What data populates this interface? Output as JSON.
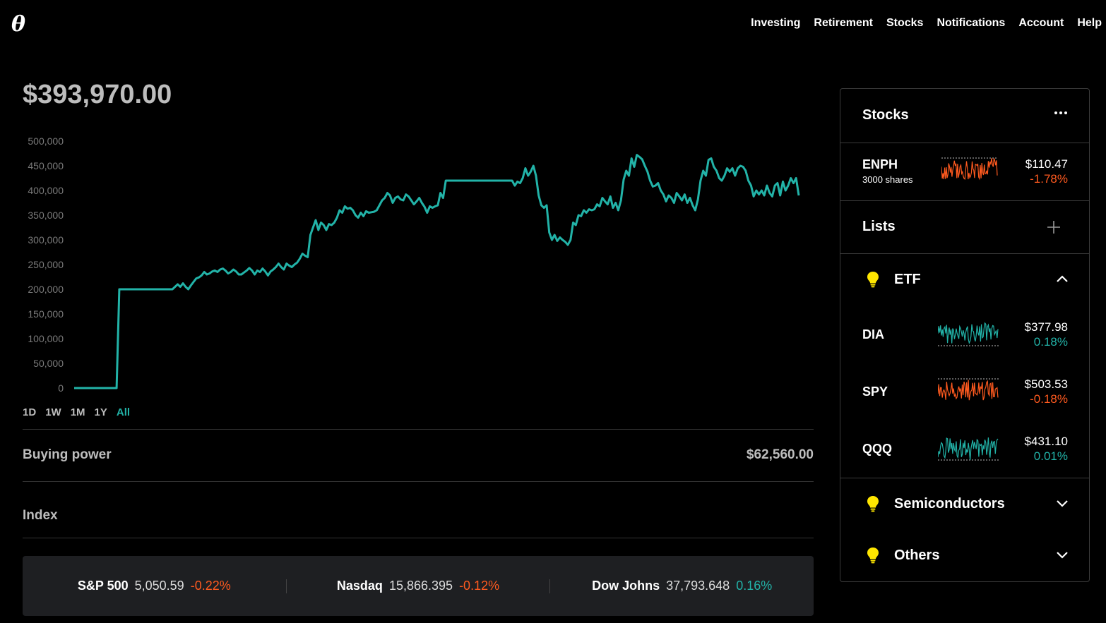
{
  "app": {
    "logo": "θ"
  },
  "nav": {
    "items": [
      "Investing",
      "Retirement",
      "Stocks",
      "Notifications",
      "Account",
      "Help"
    ]
  },
  "portfolio": {
    "value": "$393,970.00"
  },
  "chart_data": {
    "type": "line",
    "title": "",
    "xlabel": "",
    "ylabel": "",
    "ylim": [
      0,
      500000
    ],
    "yticks": [
      0,
      50000,
      100000,
      150000,
      200000,
      250000,
      300000,
      350000,
      400000,
      450000,
      500000
    ],
    "ytick_labels": [
      "0",
      "50,000",
      "100,000",
      "150,000",
      "200,000",
      "250,000",
      "300,000",
      "350,000",
      "400,000",
      "450,000",
      "500,000"
    ],
    "color": "#22b3a8",
    "grid": false,
    "series": [
      {
        "values": [
          0,
          0,
          0,
          0,
          0,
          0,
          0,
          0,
          0,
          0,
          0,
          0,
          0,
          0,
          0,
          0,
          0,
          200000,
          200000,
          200000,
          200000,
          200000,
          200000,
          200000,
          200000,
          200000,
          200000,
          200000,
          200000,
          200000,
          200000,
          200000,
          200000,
          200000,
          200000,
          200000,
          200000,
          200000,
          205000,
          210000,
          205000,
          212000,
          205000,
          200000,
          208000,
          215000,
          222000,
          224000,
          228000,
          235000,
          230000,
          232000,
          236000,
          238000,
          235000,
          240000,
          242000,
          238000,
          232000,
          235000,
          240000,
          236000,
          230000,
          230000,
          234000,
          238000,
          243000,
          238000,
          230000,
          238000,
          235000,
          242000,
          236000,
          228000,
          236000,
          240000,
          245000,
          252000,
          245000,
          240000,
          252000,
          248000,
          245000,
          250000,
          254000,
          262000,
          272000,
          268000,
          265000,
          310000,
          325000,
          340000,
          320000,
          335000,
          330000,
          320000,
          332000,
          330000,
          335000,
          345000,
          360000,
          355000,
          368000,
          363000,
          365000,
          360000,
          350000,
          345000,
          355000,
          348000,
          358000,
          355000,
          356000,
          357000,
          360000,
          370000,
          380000,
          385000,
          395000,
          390000,
          375000,
          385000,
          388000,
          382000,
          380000,
          392000,
          388000,
          380000,
          372000,
          378000,
          385000,
          375000,
          367000,
          355000,
          368000,
          365000,
          368000,
          370000,
          395000,
          385000,
          420000,
          420000,
          420000,
          420000,
          420000,
          420000,
          420000,
          420000,
          420000,
          420000,
          420000,
          420000,
          420000,
          420000,
          420000,
          420000,
          420000,
          420000,
          420000,
          420000,
          420000,
          420000,
          420000,
          420000,
          420000,
          420000,
          410000,
          418000,
          415000,
          425000,
          445000,
          430000,
          438000,
          450000,
          430000,
          390000,
          370000,
          365000,
          370000,
          315000,
          300000,
          310000,
          298000,
          305000,
          300000,
          296000,
          290000,
          300000,
          335000,
          330000,
          350000,
          348000,
          360000,
          355000,
          362000,
          360000,
          362000,
          372000,
          368000,
          385000,
          378000,
          372000,
          388000,
          365000,
          375000,
          360000,
          380000,
          422000,
          440000,
          430000,
          465000,
          448000,
          472000,
          468000,
          463000,
          450000,
          438000,
          420000,
          408000,
          410000,
          415000,
          400000,
          392000,
          378000,
          390000,
          385000,
          375000,
          395000,
          388000,
          380000,
          392000,
          375000,
          385000,
          370000,
          360000,
          382000,
          420000,
          440000,
          430000,
          462000,
          465000,
          448000,
          440000,
          425000,
          420000,
          430000,
          445000,
          438000,
          445000,
          430000,
          445000,
          450000,
          448000,
          440000,
          420000,
          410000,
          388000,
          400000,
          392000,
          400000,
          390000,
          410000,
          395000,
          388000,
          410000,
          415000,
          390000,
          418000,
          400000,
          410000,
          425000,
          415000,
          425000,
          390000
        ]
      }
    ],
    "range_tabs": [
      "1D",
      "1W",
      "1M",
      "1Y",
      "All"
    ],
    "active_range": "All"
  },
  "buying_power": {
    "label": "Buying power",
    "value": "$62,560.00"
  },
  "index": {
    "label": "Index",
    "items": [
      {
        "name": "S&P 500",
        "value": "5,050.59",
        "change": "-0.22%",
        "direction": "down"
      },
      {
        "name": "Nasdaq",
        "value": "15,866.395",
        "change": "-0.12%",
        "direction": "down"
      },
      {
        "name": "Dow Johns",
        "value": "37,793.648",
        "change": "0.16%",
        "direction": "up"
      }
    ]
  },
  "sidebar": {
    "stocks_title": "Stocks",
    "more_icon": "more-horizontal-icon",
    "holdings": [
      {
        "symbol": "ENPH",
        "shares": "3000 shares",
        "price": "$110.47",
        "change": "-1.78%",
        "direction": "down"
      }
    ],
    "lists_title": "Lists",
    "add_icon": "plus-icon",
    "groups": [
      {
        "name": "ETF",
        "icon": "lightbulb-icon",
        "expanded": true,
        "items": [
          {
            "symbol": "DIA",
            "price": "$377.98",
            "change": "0.18%",
            "direction": "up"
          },
          {
            "symbol": "SPY",
            "price": "$503.53",
            "change": "-0.18%",
            "direction": "down"
          },
          {
            "symbol": "QQQ",
            "price": "$431.10",
            "change": "0.01%",
            "direction": "up"
          }
        ]
      },
      {
        "name": "Semiconductors",
        "icon": "lightbulb-icon",
        "expanded": false
      },
      {
        "name": "Others",
        "icon": "lightbulb-icon",
        "expanded": false
      }
    ]
  },
  "colors": {
    "up": "#22b3a8",
    "down": "#ff5a1f",
    "bulb": "#ffe600",
    "background": "#000000"
  }
}
